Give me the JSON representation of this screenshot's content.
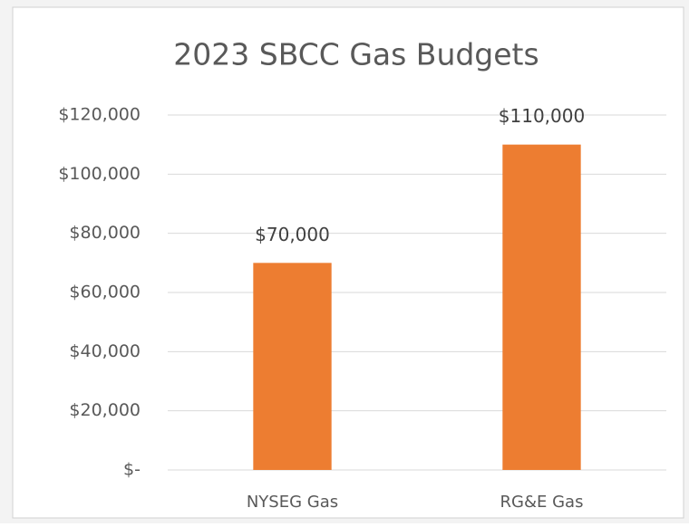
{
  "chart_data": {
    "type": "bar",
    "title": "2023 SBCC Gas Budgets",
    "categories": [
      "NYSEG Gas",
      "RG&E Gas"
    ],
    "values": [
      70000,
      110000
    ],
    "value_labels": [
      "$70,000",
      "$110,000"
    ],
    "color": "#ed7d31",
    "ylim": [
      0,
      120000
    ],
    "yticks": [
      {
        "value": 0,
        "label": "$-"
      },
      {
        "value": 20000,
        "label": "$20,000"
      },
      {
        "value": 40000,
        "label": "$40,000"
      },
      {
        "value": 60000,
        "label": "$60,000"
      },
      {
        "value": 80000,
        "label": "$80,000"
      },
      {
        "value": 100000,
        "label": "$100,000"
      },
      {
        "value": 120000,
        "label": "$120,000"
      }
    ],
    "grid": true
  }
}
